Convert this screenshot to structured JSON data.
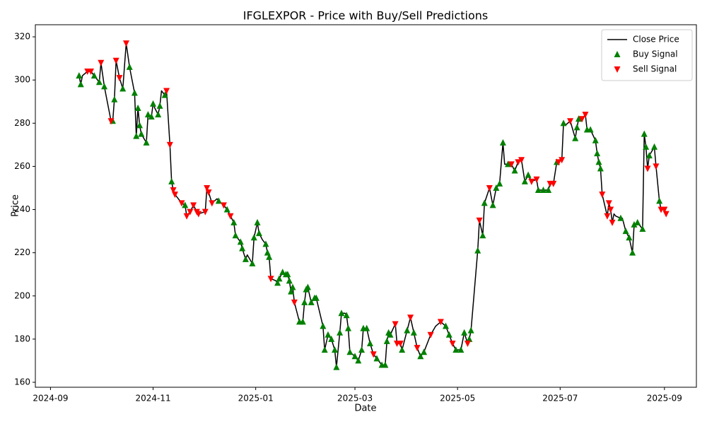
{
  "chart_data": {
    "type": "line",
    "title": "IFGLEXPOR - Price with Buy/Sell Predictions",
    "xlabel": "Date",
    "ylabel": "Price",
    "legend": "upper right",
    "xlim": [
      "2024-08-23",
      "2025-09-20"
    ],
    "xticks": [
      {
        "value": "2024-09-01",
        "label": "2024-09"
      },
      {
        "value": "2024-11-01",
        "label": "2024-11"
      },
      {
        "value": "2025-01-01",
        "label": "2025-01"
      },
      {
        "value": "2025-03-01",
        "label": "2025-03"
      },
      {
        "value": "2025-05-01",
        "label": "2025-05"
      },
      {
        "value": "2025-07-01",
        "label": "2025-07"
      },
      {
        "value": "2025-09-01",
        "label": "2025-09"
      }
    ],
    "ylim": [
      157.7,
      325.6
    ],
    "yticks": [
      160,
      180,
      200,
      220,
      240,
      260,
      280,
      300,
      320
    ],
    "x": [
      "2024-09-18",
      "2024-09-19",
      "2024-09-20",
      "2024-09-23",
      "2024-09-25",
      "2024-09-27",
      "2024-09-30",
      "2024-10-01",
      "2024-10-03",
      "2024-10-07",
      "2024-10-08",
      "2024-10-09",
      "2024-10-10",
      "2024-10-12",
      "2024-10-14",
      "2024-10-16",
      "2024-10-18",
      "2024-10-21",
      "2024-10-22",
      "2024-10-23",
      "2024-10-24",
      "2024-10-25",
      "2024-10-28",
      "2024-10-29",
      "2024-10-31",
      "2024-11-01",
      "2024-11-02",
      "2024-11-04",
      "2024-11-05",
      "2024-11-06",
      "2024-11-08",
      "2024-11-09",
      "2024-11-11",
      "2024-11-12",
      "2024-11-13",
      "2024-11-14",
      "2024-11-18",
      "2024-11-20",
      "2024-11-21",
      "2024-11-23",
      "2024-11-25",
      "2024-11-27",
      "2024-11-28",
      "2024-12-02",
      "2024-12-03",
      "2024-12-04",
      "2024-12-06",
      "2024-12-09",
      "2024-12-10",
      "2024-12-13",
      "2024-12-15",
      "2024-12-17",
      "2024-12-19",
      "2024-12-20",
      "2024-12-23",
      "2024-12-24",
      "2024-12-26",
      "2024-12-27",
      "2024-12-30",
      "2024-12-31",
      "2025-01-02",
      "2025-01-03",
      "2025-01-05",
      "2025-01-07",
      "2025-01-08",
      "2025-01-09",
      "2025-01-10",
      "2025-01-13",
      "2025-01-14",
      "2025-01-15",
      "2025-01-17",
      "2025-01-19",
      "2025-01-20",
      "2025-01-21",
      "2025-01-22",
      "2025-01-23",
      "2025-01-24",
      "2025-01-27",
      "2025-01-29",
      "2025-01-30",
      "2025-01-31",
      "2025-02-01",
      "2025-02-03",
      "2025-02-05",
      "2025-02-06",
      "2025-02-10",
      "2025-02-11",
      "2025-02-13",
      "2025-02-15",
      "2025-02-17",
      "2025-02-18",
      "2025-02-20",
      "2025-02-21",
      "2025-02-23",
      "2025-02-24",
      "2025-02-25",
      "2025-02-26",
      "2025-03-01",
      "2025-03-03",
      "2025-03-05",
      "2025-03-06",
      "2025-03-08",
      "2025-03-10",
      "2025-03-12",
      "2025-03-14",
      "2025-03-17",
      "2025-03-19",
      "2025-03-20",
      "2025-03-21",
      "2025-03-22",
      "2025-03-25",
      "2025-03-26",
      "2025-03-28",
      "2025-03-29",
      "2025-04-01",
      "2025-04-03",
      "2025-04-05",
      "2025-04-07",
      "2025-04-09",
      "2025-04-11",
      "2025-04-15",
      "2025-04-18",
      "2025-04-21",
      "2025-04-24",
      "2025-04-26",
      "2025-04-28",
      "2025-04-30",
      "2025-05-03",
      "2025-05-05",
      "2025-05-07",
      "2025-05-08",
      "2025-05-09",
      "2025-05-13",
      "2025-05-14",
      "2025-05-16",
      "2025-05-17",
      "2025-05-20",
      "2025-05-22",
      "2025-05-24",
      "2025-05-26",
      "2025-05-28",
      "2025-05-29",
      "2025-05-31",
      "2025-06-02",
      "2025-06-04",
      "2025-06-06",
      "2025-06-08",
      "2025-06-10",
      "2025-06-12",
      "2025-06-14",
      "2025-06-17",
      "2025-06-18",
      "2025-06-21",
      "2025-06-24",
      "2025-06-25",
      "2025-06-27",
      "2025-06-29",
      "2025-06-30",
      "2025-07-02",
      "2025-07-03",
      "2025-07-04",
      "2025-07-07",
      "2025-07-10",
      "2025-07-11",
      "2025-07-12",
      "2025-07-14",
      "2025-07-16",
      "2025-07-17",
      "2025-07-19",
      "2025-07-22",
      "2025-07-23",
      "2025-07-24",
      "2025-07-25",
      "2025-07-26",
      "2025-07-29",
      "2025-07-30",
      "2025-07-31",
      "2025-08-01",
      "2025-08-02",
      "2025-08-03",
      "2025-08-06",
      "2025-08-07",
      "2025-08-09",
      "2025-08-11",
      "2025-08-13",
      "2025-08-14",
      "2025-08-16",
      "2025-08-18",
      "2025-08-19",
      "2025-08-20",
      "2025-08-21",
      "2025-08-22",
      "2025-08-23",
      "2025-08-26",
      "2025-08-27",
      "2025-08-29",
      "2025-08-30",
      "2025-09-01",
      "2025-09-02"
    ],
    "series": [
      {
        "name": "Close Price",
        "type": "line",
        "color": "#000000",
        "values": [
          302,
          298,
          302,
          304,
          304,
          302,
          299,
          308,
          297,
          281,
          281,
          291,
          309,
          301,
          296,
          317,
          306,
          294,
          274,
          287,
          279,
          275,
          271,
          284,
          283,
          289,
          287,
          284,
          288,
          295,
          293,
          295,
          270,
          253,
          249,
          247,
          243,
          242,
          237,
          239,
          242,
          239,
          238,
          239,
          250,
          248,
          243,
          245,
          244,
          242,
          240,
          237,
          234,
          228,
          225,
          222,
          217,
          219,
          215,
          227,
          234,
          229,
          226,
          224,
          220,
          218,
          208,
          207,
          206,
          208,
          211,
          210,
          210,
          207,
          202,
          204,
          197,
          188,
          188,
          197,
          203,
          204,
          197,
          199,
          199,
          186,
          175,
          182,
          180,
          175,
          167,
          183,
          192,
          192,
          191,
          185,
          174,
          172,
          170,
          175,
          185,
          185,
          178,
          173,
          171,
          168,
          168,
          179,
          183,
          182,
          187,
          178,
          178,
          175,
          184,
          190,
          183,
          176,
          172,
          174,
          182,
          186,
          188,
          186,
          182,
          178,
          175,
          175,
          183,
          178,
          180,
          184,
          221,
          235,
          228,
          243,
          250,
          242,
          250,
          252,
          271,
          261,
          261,
          261,
          258,
          262,
          263,
          253,
          256,
          253,
          254,
          249,
          249,
          249,
          252,
          252,
          262,
          262,
          263,
          280,
          279,
          281,
          273,
          278,
          282,
          282,
          284,
          277,
          277,
          272,
          266,
          262,
          259,
          247,
          237,
          243,
          240,
          234,
          238,
          237,
          236,
          236,
          230,
          227,
          220,
          233,
          234,
          232,
          231,
          275,
          269,
          259,
          265,
          269,
          260,
          244,
          240,
          240,
          238
        ]
      },
      {
        "name": "Buy Signal",
        "type": "scatter",
        "marker": "triangle-up",
        "color": "#008000",
        "x": [
          "2024-09-18",
          "2024-09-19",
          "2024-09-27",
          "2024-09-30",
          "2024-10-03",
          "2024-10-08",
          "2024-10-09",
          "2024-10-14",
          "2024-10-18",
          "2024-10-21",
          "2024-10-22",
          "2024-10-23",
          "2024-10-24",
          "2024-10-25",
          "2024-10-28",
          "2024-10-29",
          "2024-10-31",
          "2024-11-01",
          "2024-11-04",
          "2024-11-05",
          "2024-11-08",
          "2024-11-12",
          "2024-11-20",
          "2024-12-10",
          "2024-12-15",
          "2024-12-19",
          "2024-12-20",
          "2024-12-23",
          "2024-12-24",
          "2024-12-26",
          "2024-12-30",
          "2024-12-31",
          "2025-01-02",
          "2025-01-03",
          "2025-01-07",
          "2025-01-08",
          "2025-01-09",
          "2025-01-14",
          "2025-01-15",
          "2025-01-17",
          "2025-01-19",
          "2025-01-20",
          "2025-01-21",
          "2025-01-22",
          "2025-01-23",
          "2025-01-27",
          "2025-01-29",
          "2025-01-30",
          "2025-01-31",
          "2025-02-01",
          "2025-02-03",
          "2025-02-05",
          "2025-02-06",
          "2025-02-10",
          "2025-02-11",
          "2025-02-13",
          "2025-02-15",
          "2025-02-17",
          "2025-02-18",
          "2025-02-20",
          "2025-02-21",
          "2025-02-24",
          "2025-02-25",
          "2025-02-26",
          "2025-03-01",
          "2025-03-03",
          "2025-03-05",
          "2025-03-06",
          "2025-03-08",
          "2025-03-10",
          "2025-03-14",
          "2025-03-17",
          "2025-03-19",
          "2025-03-20",
          "2025-03-21",
          "2025-03-22",
          "2025-03-29",
          "2025-04-01",
          "2025-04-05",
          "2025-04-09",
          "2025-04-11",
          "2025-04-24",
          "2025-04-26",
          "2025-04-30",
          "2025-05-03",
          "2025-05-05",
          "2025-05-08",
          "2025-05-09",
          "2025-05-13",
          "2025-05-16",
          "2025-05-17",
          "2025-05-22",
          "2025-05-24",
          "2025-05-26",
          "2025-05-28",
          "2025-05-31",
          "2025-06-04",
          "2025-06-10",
          "2025-06-12",
          "2025-06-18",
          "2025-06-21",
          "2025-06-24",
          "2025-06-29",
          "2025-07-03",
          "2025-07-10",
          "2025-07-11",
          "2025-07-12",
          "2025-07-17",
          "2025-07-19",
          "2025-07-22",
          "2025-07-23",
          "2025-07-24",
          "2025-07-25",
          "2025-08-06",
          "2025-08-09",
          "2025-08-11",
          "2025-08-13",
          "2025-08-14",
          "2025-08-16",
          "2025-08-19",
          "2025-08-20",
          "2025-08-21",
          "2025-08-23",
          "2025-08-26",
          "2025-08-29"
        ],
        "values": [
          302,
          298,
          302,
          299,
          297,
          281,
          291,
          296,
          306,
          294,
          274,
          287,
          279,
          275,
          271,
          284,
          283,
          289,
          284,
          288,
          293,
          253,
          242,
          244,
          240,
          234,
          228,
          225,
          222,
          217,
          215,
          227,
          234,
          229,
          224,
          220,
          218,
          206,
          208,
          211,
          210,
          210,
          207,
          202,
          204,
          188,
          188,
          197,
          203,
          204,
          197,
          199,
          199,
          186,
          175,
          182,
          180,
          175,
          167,
          183,
          192,
          191,
          185,
          174,
          172,
          170,
          175,
          185,
          185,
          178,
          171,
          168,
          168,
          179,
          183,
          182,
          175,
          184,
          183,
          172,
          174,
          186,
          182,
          175,
          175,
          183,
          180,
          184,
          221,
          228,
          243,
          242,
          250,
          252,
          271,
          261,
          258,
          253,
          256,
          249,
          249,
          249,
          262,
          280,
          273,
          278,
          282,
          277,
          277,
          272,
          266,
          262,
          259,
          236,
          230,
          227,
          220,
          233,
          234,
          231,
          275,
          269,
          265,
          269,
          244
        ]
      },
      {
        "name": "Sell Signal",
        "type": "scatter",
        "marker": "triangle-down",
        "color": "#ff0000",
        "x": [
          "2024-09-23",
          "2024-09-25",
          "2024-10-01",
          "2024-10-07",
          "2024-10-10",
          "2024-10-12",
          "2024-10-16",
          "2024-11-09",
          "2024-11-11",
          "2024-11-13",
          "2024-11-14",
          "2024-11-18",
          "2024-11-21",
          "2024-11-23",
          "2024-11-25",
          "2024-11-27",
          "2024-11-28",
          "2024-12-02",
          "2024-12-03",
          "2024-12-04",
          "2024-12-06",
          "2024-12-13",
          "2024-12-17",
          "2025-01-10",
          "2025-01-24",
          "2025-03-12",
          "2025-03-25",
          "2025-03-26",
          "2025-03-28",
          "2025-04-03",
          "2025-04-07",
          "2025-04-15",
          "2025-04-21",
          "2025-04-28",
          "2025-05-07",
          "2025-05-14",
          "2025-05-20",
          "2025-06-02",
          "2025-06-06",
          "2025-06-08",
          "2025-06-14",
          "2025-06-17",
          "2025-06-25",
          "2025-06-27",
          "2025-06-30",
          "2025-07-02",
          "2025-07-07",
          "2025-07-14",
          "2025-07-16",
          "2025-07-26",
          "2025-07-29",
          "2025-07-30",
          "2025-07-31",
          "2025-08-01",
          "2025-08-22",
          "2025-08-27",
          "2025-08-30",
          "2025-09-01",
          "2025-09-02"
        ],
        "values": [
          304,
          304,
          308,
          281,
          309,
          301,
          317,
          295,
          270,
          249,
          247,
          243,
          237,
          239,
          242,
          239,
          238,
          239,
          250,
          248,
          243,
          242,
          237,
          208,
          197,
          173,
          187,
          178,
          178,
          190,
          176,
          182,
          188,
          178,
          178,
          235,
          250,
          261,
          262,
          263,
          253,
          254,
          252,
          252,
          262,
          263,
          281,
          282,
          284,
          247,
          237,
          243,
          240,
          234,
          259,
          260,
          240,
          240,
          238
        ]
      }
    ]
  }
}
